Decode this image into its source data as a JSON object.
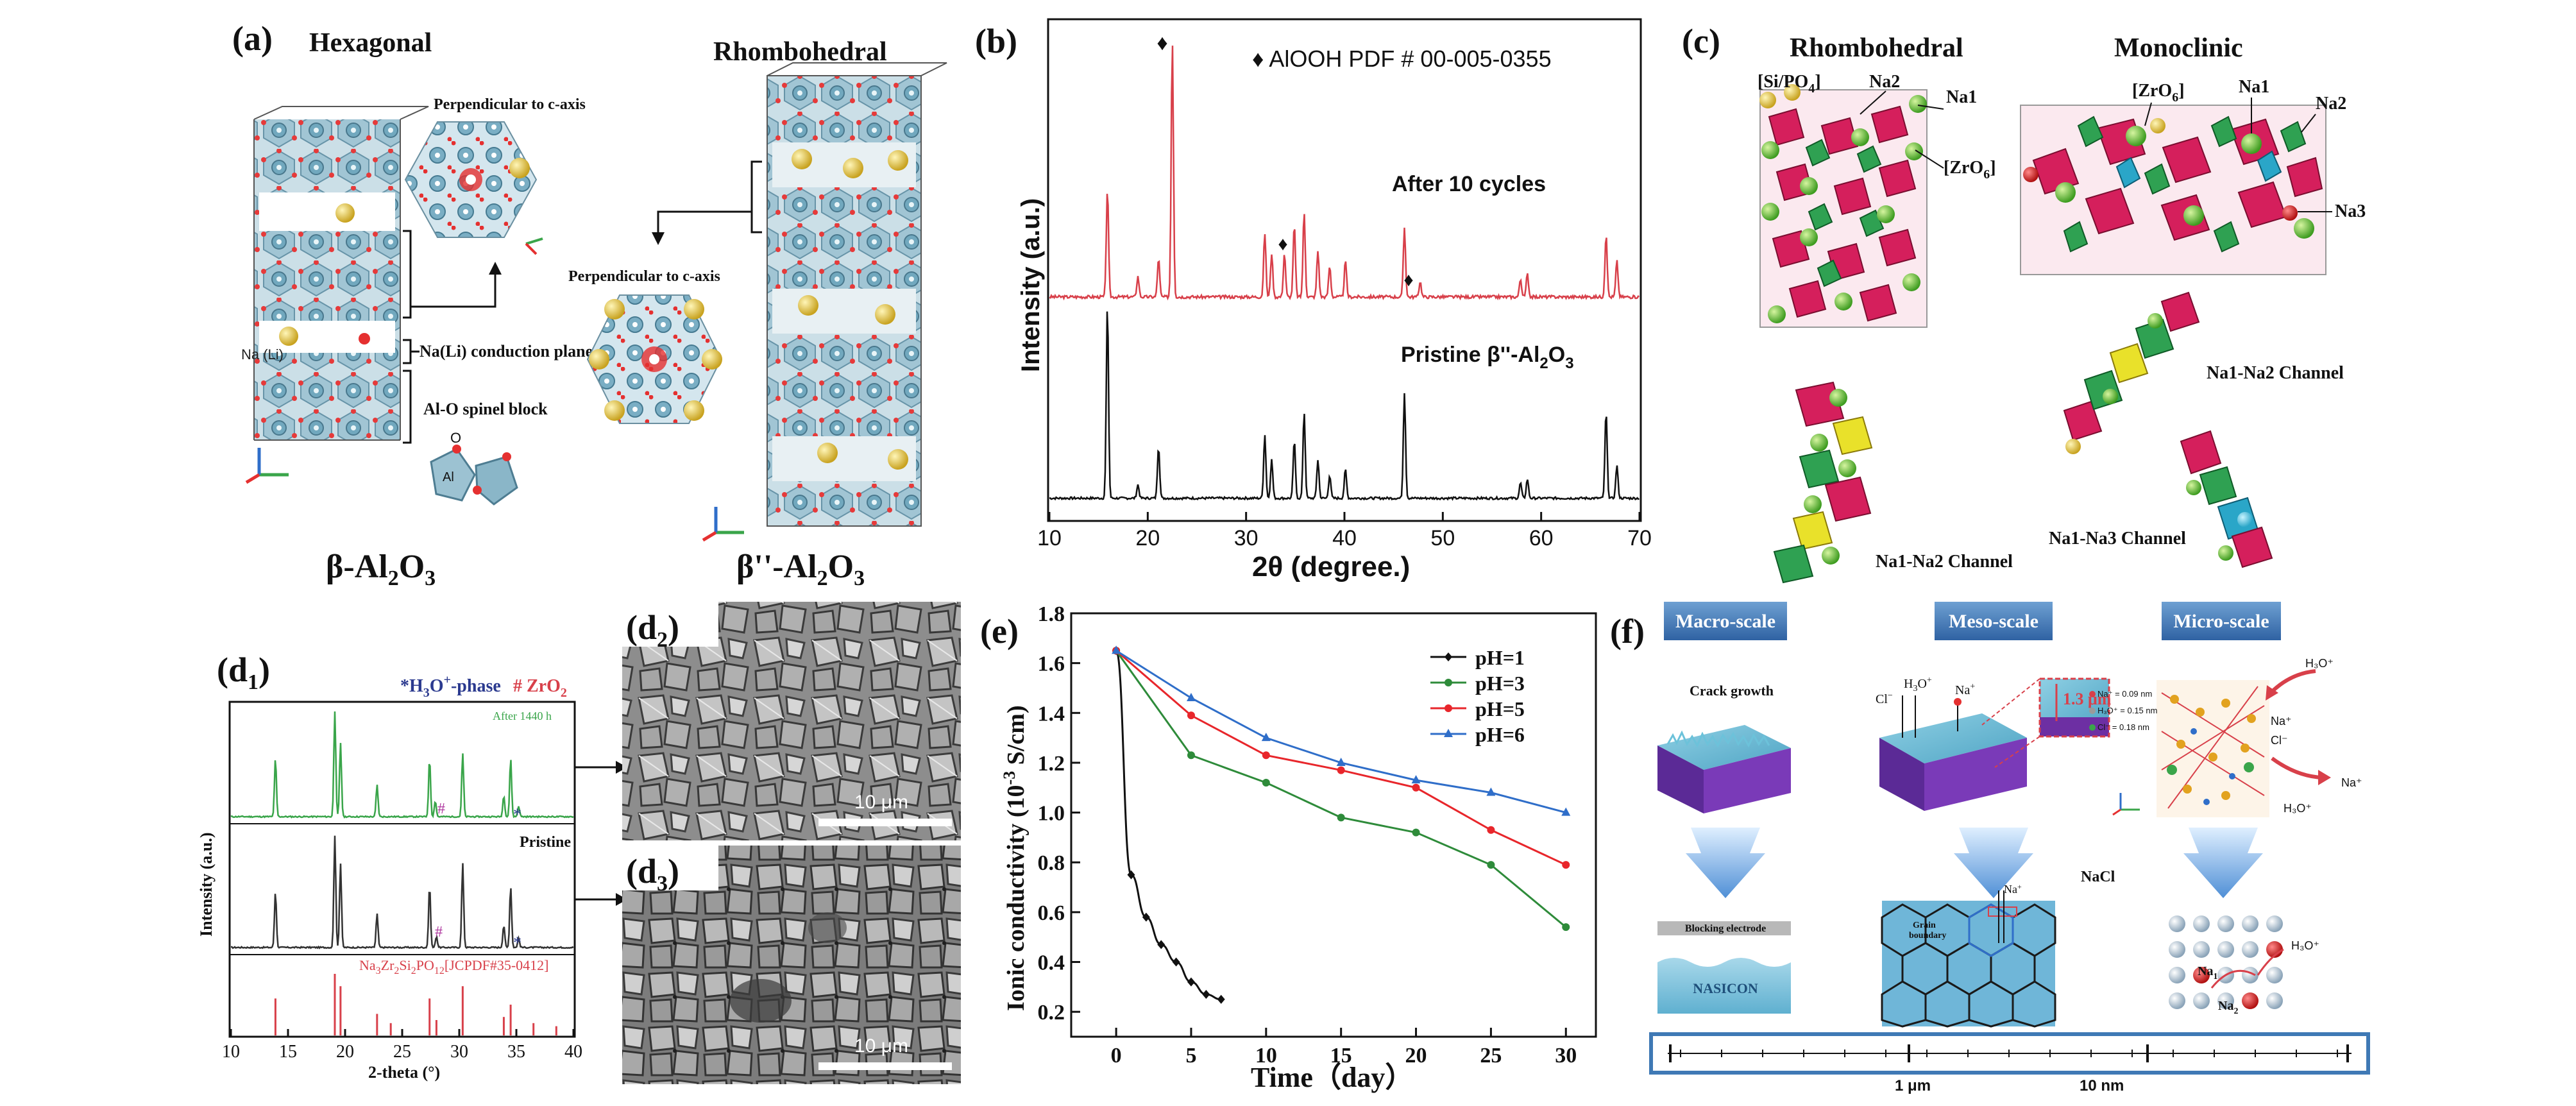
{
  "panels": {
    "a": {
      "label": "(a)",
      "hexagonal": "Hexagonal",
      "rhombohedral": "Rhombohedral",
      "perp1": "Perpendicular to c-axis",
      "perp2": "Perpendicular to c-axis",
      "conduction_plane": "Na(Li) conduction plane",
      "spinel_block": "Al-O spinel block",
      "na_li": "Na (Li)",
      "o_label": "O",
      "al_label": "Al",
      "beta_main": "β-Al",
      "beta_sub1": "2",
      "beta_o": "O",
      "beta_sub2": "3",
      "bdp_main": "β''-Al",
      "bdp_sub1": "2",
      "bdp_o": "O",
      "bdp_sub2": "3"
    },
    "b": {
      "label": "(b)",
      "legend": "♦ AlOOH PDF # 00-005-0355",
      "after": "After 10 cycles",
      "pristine_main": "Pristine β''-Al",
      "pristine_sub1": "2",
      "pristine_o": "O",
      "pristine_sub2": "3",
      "ylabel": "Intensity (a.u.)",
      "xlabel": "2θ (degree.)",
      "xticks": [
        "10",
        "20",
        "30",
        "40",
        "50",
        "60",
        "70"
      ],
      "diamond": "♦"
    },
    "c": {
      "label": "(c)",
      "rhombohedral": "Rhombohedral",
      "monoclinic": "Monoclinic",
      "si_po4": "[Si/PO",
      "si_po4_sub": "4",
      "si_po4_close": "]",
      "zro6_a": "[ZrO",
      "zro6_a_sub": "6",
      "zro6_a_close": "]",
      "zro6_b": "[ZrO",
      "zro6_b_sub": "6",
      "zro6_b_close": "]",
      "na1_r": "Na1",
      "na2_r": "Na2",
      "na1_m": "Na1",
      "na2_m": "Na2",
      "na3_m": "Na3",
      "ch_r": "Na1-Na2 Channel",
      "ch_m1": "Na1-Na2 Channel",
      "ch_m2": "Na1-Na3 Channel"
    },
    "d1": {
      "label": "(d",
      "label_sub": "1",
      "label_close": ")",
      "legend_h": "*H",
      "legend_h_sub": "3",
      "legend_h_rest": "O",
      "legend_h_sup": "+",
      "legend_h_end": "-phase",
      "legend_zr": "# ZrO",
      "legend_zr_sub": "2",
      "after": "After 1440 h",
      "pristine": "Pristine",
      "ref_a": "Na",
      "ref_a_sub": "3",
      "ref_b": "Zr",
      "ref_b_sub": "2",
      "ref_c": "Si",
      "ref_c_sub": "2",
      "ref_d": "PO",
      "ref_d_sub": "12",
      "ref_e": "[JCPDF#35-0412]",
      "ylabel": "Intensity (a.u.)",
      "xlabel": "2-theta (°)",
      "xticks": [
        "10",
        "15",
        "20",
        "25",
        "30",
        "35",
        "40"
      ]
    },
    "d2": {
      "label": "(d",
      "label_sub": "2",
      "label_close": ")",
      "scale": "10 μm"
    },
    "d3": {
      "label": "(d",
      "label_sub": "3",
      "label_close": ")",
      "scale": "10 μm"
    },
    "e": {
      "label": "(e)",
      "ylabel_a": "Ionic conductivity (10",
      "ylabel_sup": "-3",
      "ylabel_b": " S/cm)",
      "xlabel": "Time（day）"
    },
    "f": {
      "label": "(f)",
      "macro": "Macro-scale",
      "meso": "Meso-scale",
      "micro": "Micro-scale",
      "crack": "Crack growth",
      "blocking": "Blocking electrode",
      "nasicon": "NASICON",
      "h3o_a": "H",
      "h3o_a_sub": "3",
      "h3o_a_rest": "O",
      "h3o_a_sup": "+",
      "cl": "Cl",
      "cl_sup": "−",
      "na_plus": "Na",
      "na_plus_sup": "+",
      "thickness": "1.3 μm",
      "nacl": "NaCl",
      "grain": "Grain",
      "boundary": "boundary",
      "na_arrow": "Na",
      "na_arrow_sup": "+",
      "radius1": "Na⁺ = 0.09 nm",
      "radius2": "H₃O⁺ = 0.15 nm",
      "radius3": "Cl⁻ = 0.18 nm",
      "micro_h3o_top": "H₃O⁺",
      "micro_na": "Na⁺",
      "micro_cl": "Cl⁻",
      "micro_h3o_bot": "H₃O⁺",
      "micro_na_right": "Na⁺",
      "na1": "Na",
      "na1_sub": "1",
      "na2": "Na",
      "na2_sub": "2",
      "micro_h3o_lat": "H₃O⁺",
      "scale1": "1 μm",
      "scale2": "10 nm"
    }
  },
  "colors": {
    "red": "#e8262b",
    "green": "#2e8b3a",
    "blue": "#2f6ec9",
    "black": "#111111",
    "xrd_green": "#3aa54a",
    "xrd_red": "#d8404a",
    "scale_header": "#3f79b5",
    "crystal_blue": "#7fb2c8",
    "polyhedra_red": "#d51f5c",
    "polyhedra_green": "#2fa152",
    "sodium_yellow": "#e2c23a",
    "slab_blue": "#88c7dd",
    "slab_purple": "#6d2fa3"
  },
  "chart_data": [
    {
      "id": "b",
      "type": "line",
      "xlabel": "2θ (degree.)",
      "ylabel": "Intensity (a.u.)",
      "xlim": [
        10,
        70
      ],
      "series": [
        {
          "name": "After 10 cycles",
          "peaks": [
            [
              15.9,
              0.42
            ],
            [
              19.0,
              0.08
            ],
            [
              21.1,
              0.15
            ],
            [
              22.5,
              1.0
            ],
            [
              31.9,
              0.25
            ],
            [
              32.6,
              0.17
            ],
            [
              33.9,
              0.17
            ],
            [
              34.9,
              0.28
            ],
            [
              35.9,
              0.33
            ],
            [
              37.3,
              0.18
            ],
            [
              38.5,
              0.12
            ],
            [
              40.1,
              0.14
            ],
            [
              46.1,
              0.27
            ],
            [
              47.7,
              0.06
            ],
            [
              57.9,
              0.07
            ],
            [
              58.6,
              0.09
            ],
            [
              66.6,
              0.24
            ],
            [
              67.7,
              0.14
            ]
          ]
        },
        {
          "name": "Pristine β''-Al2O3",
          "peaks": [
            [
              15.9,
              1.0
            ],
            [
              19.0,
              0.07
            ],
            [
              21.1,
              0.27
            ],
            [
              31.9,
              0.33
            ],
            [
              32.6,
              0.2
            ],
            [
              34.9,
              0.3
            ],
            [
              35.9,
              0.45
            ],
            [
              37.3,
              0.2
            ],
            [
              38.5,
              0.12
            ],
            [
              40.1,
              0.15
            ],
            [
              46.1,
              0.55
            ],
            [
              57.9,
              0.08
            ],
            [
              58.6,
              0.1
            ],
            [
              66.6,
              0.45
            ],
            [
              67.7,
              0.17
            ]
          ]
        }
      ],
      "markers": [
        22.5,
        33.9,
        47.7
      ]
    },
    {
      "id": "d1",
      "type": "line",
      "xlabel": "2-theta (°)",
      "ylabel": "Intensity (a.u.)",
      "xlim": [
        10,
        40
      ],
      "series": [
        {
          "name": "After 1440 h",
          "peaks": [
            [
              13.9,
              0.55
            ],
            [
              19.1,
              1.0
            ],
            [
              19.6,
              0.7
            ],
            [
              22.8,
              0.3
            ],
            [
              27.4,
              0.55
            ],
            [
              27.9,
              0.15
            ],
            [
              30.3,
              0.6
            ],
            [
              33.9,
              0.2
            ],
            [
              34.5,
              0.55
            ],
            [
              35.2,
              0.1
            ]
          ]
        },
        {
          "name": "Pristine",
          "peaks": [
            [
              13.9,
              0.5
            ],
            [
              19.1,
              1.0
            ],
            [
              19.6,
              0.75
            ],
            [
              22.8,
              0.3
            ],
            [
              27.4,
              0.55
            ],
            [
              28.0,
              0.1
            ],
            [
              30.3,
              0.75
            ],
            [
              33.9,
              0.2
            ],
            [
              34.5,
              0.55
            ],
            [
              35.2,
              0.08
            ]
          ]
        },
        {
          "name": "Na3Zr2Si2PO12[JCPDF#35-0412]",
          "sticks": [
            [
              13.9,
              0.6
            ],
            [
              19.1,
              1.0
            ],
            [
              19.6,
              0.8
            ],
            [
              22.8,
              0.35
            ],
            [
              24.0,
              0.2
            ],
            [
              27.4,
              0.6
            ],
            [
              28.0,
              0.25
            ],
            [
              30.3,
              0.8
            ],
            [
              33.9,
              0.3
            ],
            [
              34.5,
              0.5
            ],
            [
              36.5,
              0.2
            ],
            [
              38.5,
              0.15
            ]
          ]
        }
      ]
    },
    {
      "id": "e",
      "type": "line",
      "xlabel": "Time（day）",
      "ylabel": "Ionic conductivity (10-3 S/cm)",
      "xlim": [
        -3,
        32
      ],
      "ylim": [
        0.1,
        1.8
      ],
      "yticks": [
        0.2,
        0.4,
        0.6,
        0.8,
        1.0,
        1.2,
        1.4,
        1.6,
        1.8
      ],
      "xticks": [
        0,
        5,
        10,
        15,
        20,
        25,
        30
      ],
      "legend": "top-right",
      "series": [
        {
          "name": "pH=1",
          "color": "#111111",
          "marker": "diamond",
          "x": [
            0,
            1,
            2,
            3,
            4,
            5,
            6,
            7
          ],
          "y": [
            1.65,
            0.75,
            0.58,
            0.47,
            0.4,
            0.32,
            0.27,
            0.25
          ]
        },
        {
          "name": "pH=3",
          "color": "#2e8b3a",
          "marker": "circle",
          "x": [
            0,
            5,
            10,
            15,
            20,
            25,
            30
          ],
          "y": [
            1.65,
            1.23,
            1.12,
            0.98,
            0.92,
            0.79,
            0.54
          ]
        },
        {
          "name": "pH=5",
          "color": "#e8262b",
          "marker": "circle",
          "x": [
            0,
            5,
            10,
            15,
            20,
            25,
            30
          ],
          "y": [
            1.65,
            1.39,
            1.23,
            1.17,
            1.1,
            0.93,
            0.79
          ]
        },
        {
          "name": "pH=6",
          "color": "#2f6ec9",
          "marker": "triangle",
          "x": [
            0,
            5,
            10,
            15,
            20,
            25,
            30
          ],
          "y": [
            1.65,
            1.46,
            1.3,
            1.2,
            1.13,
            1.08,
            1.0
          ]
        }
      ]
    }
  ]
}
